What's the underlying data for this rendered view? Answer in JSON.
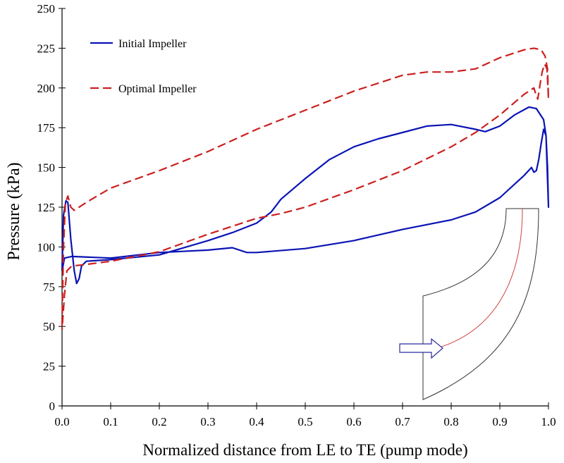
{
  "chart_data": {
    "type": "line",
    "title": "",
    "xlabel": "Normalized distance from LE to TE (pump mode)",
    "ylabel": "Pressure (kPa)",
    "xlim": [
      0,
      1.0
    ],
    "ylim": [
      0,
      250
    ],
    "xticks": [
      "0.0",
      "0.1",
      "0.2",
      "0.3",
      "0.4",
      "0.5",
      "0.6",
      "0.7",
      "0.8",
      "0.9",
      "1.0"
    ],
    "yticks": [
      "0",
      "25",
      "50",
      "75",
      "100",
      "125",
      "150",
      "175",
      "200",
      "225",
      "250"
    ],
    "grid": false,
    "legend_position": "top-left",
    "series": [
      {
        "name": "Initial Impeller",
        "color": "#0a14b4",
        "style": "solid",
        "points": [
          [
            0.0,
            85
          ],
          [
            0.003,
            120
          ],
          [
            0.008,
            129
          ],
          [
            0.012,
            128
          ],
          [
            0.018,
            105
          ],
          [
            0.025,
            85
          ],
          [
            0.03,
            77
          ],
          [
            0.035,
            80
          ],
          [
            0.04,
            88
          ],
          [
            0.05,
            91
          ],
          [
            0.1,
            92
          ],
          [
            0.2,
            95
          ],
          [
            0.3,
            104
          ],
          [
            0.35,
            109
          ],
          [
            0.4,
            115
          ],
          [
            0.43,
            122
          ],
          [
            0.45,
            130
          ],
          [
            0.5,
            143
          ],
          [
            0.55,
            155
          ],
          [
            0.6,
            163
          ],
          [
            0.65,
            168
          ],
          [
            0.7,
            172
          ],
          [
            0.75,
            176
          ],
          [
            0.8,
            177
          ],
          [
            0.85,
            174
          ],
          [
            0.87,
            172.5
          ],
          [
            0.9,
            176
          ],
          [
            0.93,
            183
          ],
          [
            0.96,
            188
          ],
          [
            0.975,
            187
          ],
          [
            0.99,
            180
          ],
          [
            0.995,
            170
          ],
          [
            1.0,
            125
          ],
          [
            0.998,
            150
          ],
          [
            0.995,
            170
          ],
          [
            0.99,
            174
          ],
          [
            0.985,
            165
          ],
          [
            0.98,
            155
          ],
          [
            0.975,
            148
          ],
          [
            0.97,
            147
          ],
          [
            0.965,
            150
          ],
          [
            0.95,
            145
          ],
          [
            0.9,
            131
          ],
          [
            0.85,
            122
          ],
          [
            0.8,
            117
          ],
          [
            0.7,
            111
          ],
          [
            0.6,
            104
          ],
          [
            0.5,
            99
          ],
          [
            0.4,
            96.5
          ],
          [
            0.38,
            96.5
          ],
          [
            0.35,
            99.5
          ],
          [
            0.3,
            98
          ],
          [
            0.2,
            96.5
          ],
          [
            0.1,
            93
          ],
          [
            0.02,
            94
          ],
          [
            0.005,
            93
          ],
          [
            0.0,
            85
          ]
        ]
      },
      {
        "name": "Optimal Impeller",
        "color": "#cc1f1f",
        "style": "dashed",
        "points": [
          [
            0.0,
            50
          ],
          [
            0.003,
            100
          ],
          [
            0.007,
            128
          ],
          [
            0.012,
            132
          ],
          [
            0.018,
            125
          ],
          [
            0.025,
            123
          ],
          [
            0.05,
            128
          ],
          [
            0.1,
            137
          ],
          [
            0.2,
            148
          ],
          [
            0.3,
            160
          ],
          [
            0.4,
            174
          ],
          [
            0.5,
            186
          ],
          [
            0.6,
            198
          ],
          [
            0.7,
            208
          ],
          [
            0.75,
            210
          ],
          [
            0.8,
            210
          ],
          [
            0.85,
            212
          ],
          [
            0.9,
            219
          ],
          [
            0.95,
            224
          ],
          [
            0.97,
            225
          ],
          [
            0.985,
            224
          ],
          [
            0.993,
            220
          ],
          [
            0.998,
            212
          ],
          [
            1.0,
            193
          ],
          [
            0.997,
            212
          ],
          [
            0.992,
            215
          ],
          [
            0.987,
            210
          ],
          [
            0.983,
            203
          ],
          [
            0.978,
            193
          ],
          [
            0.975,
            195
          ],
          [
            0.97,
            200
          ],
          [
            0.95,
            196
          ],
          [
            0.9,
            183
          ],
          [
            0.85,
            172
          ],
          [
            0.8,
            163
          ],
          [
            0.7,
            148
          ],
          [
            0.6,
            136
          ],
          [
            0.5,
            125
          ],
          [
            0.45,
            121
          ],
          [
            0.4,
            118
          ],
          [
            0.3,
            108
          ],
          [
            0.2,
            97
          ],
          [
            0.1,
            91
          ],
          [
            0.05,
            89
          ],
          [
            0.02,
            88
          ],
          [
            0.01,
            85
          ],
          [
            0.005,
            70
          ],
          [
            0.0,
            48
          ]
        ]
      }
    ],
    "inset": "impeller-blade-meridional-sketch"
  }
}
